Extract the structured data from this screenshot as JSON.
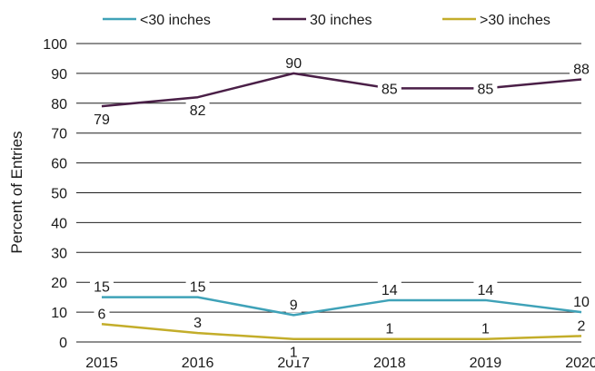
{
  "chart_data": {
    "type": "line",
    "categories": [
      "2015",
      "2016",
      "2017",
      "2018",
      "2019",
      "2020"
    ],
    "series": [
      {
        "name": "<30 inches",
        "color": "#3fa2b8",
        "values": [
          15,
          15,
          9,
          14,
          14,
          10
        ]
      },
      {
        "name": "30 inches",
        "color": "#4a1f47",
        "values": [
          79,
          82,
          90,
          85,
          85,
          88
        ]
      },
      {
        "name": ">30 inches",
        "color": "#c3ad2a",
        "values": [
          6,
          3,
          1,
          1,
          1,
          2
        ]
      }
    ],
    "ylabel": "Percent of Entries",
    "xlabel": "",
    "ylim": [
      0,
      100
    ],
    "yticks": [
      0,
      10,
      20,
      30,
      40,
      50,
      60,
      70,
      80,
      90,
      100
    ],
    "grid": true,
    "legend": "top",
    "data_labels": true
  }
}
